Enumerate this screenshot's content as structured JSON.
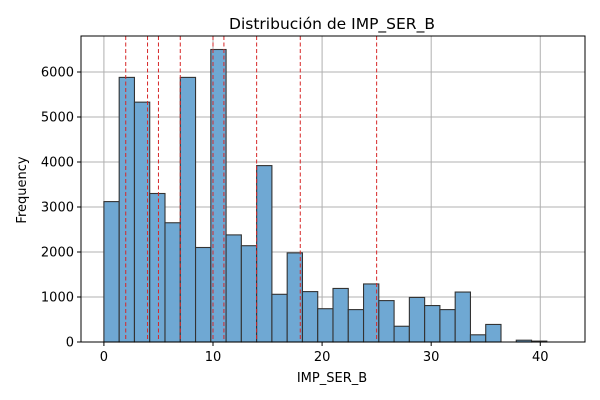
{
  "chart_data": {
    "type": "bar",
    "title": "Distribución de IMP_SER_B",
    "xlabel": "IMP_SER_B",
    "ylabel": "Frequency",
    "xlim": [
      -2.1,
      44.1
    ],
    "ylim": [
      0,
      6800
    ],
    "xticks": [
      0,
      10,
      20,
      30,
      40
    ],
    "yticks": [
      0,
      1000,
      2000,
      3000,
      4000,
      5000,
      6000
    ],
    "grid": true,
    "bin_width": 1.4,
    "bins": [
      {
        "x0": 0.0,
        "value": 3120
      },
      {
        "x0": 1.4,
        "value": 5880
      },
      {
        "x0": 2.8,
        "value": 5330
      },
      {
        "x0": 4.2,
        "value": 3300
      },
      {
        "x0": 5.6,
        "value": 2650
      },
      {
        "x0": 7.0,
        "value": 5880
      },
      {
        "x0": 8.4,
        "value": 2100
      },
      {
        "x0": 9.8,
        "value": 6500
      },
      {
        "x0": 11.2,
        "value": 2380
      },
      {
        "x0": 12.6,
        "value": 2140
      },
      {
        "x0": 14.0,
        "value": 3920
      },
      {
        "x0": 15.4,
        "value": 1060
      },
      {
        "x0": 16.8,
        "value": 1980
      },
      {
        "x0": 18.2,
        "value": 1120
      },
      {
        "x0": 19.6,
        "value": 740
      },
      {
        "x0": 21.0,
        "value": 1190
      },
      {
        "x0": 22.4,
        "value": 720
      },
      {
        "x0": 23.8,
        "value": 1290
      },
      {
        "x0": 25.2,
        "value": 920
      },
      {
        "x0": 26.6,
        "value": 350
      },
      {
        "x0": 28.0,
        "value": 990
      },
      {
        "x0": 29.4,
        "value": 810
      },
      {
        "x0": 30.8,
        "value": 720
      },
      {
        "x0": 32.2,
        "value": 1110
      },
      {
        "x0": 33.6,
        "value": 160
      },
      {
        "x0": 35.0,
        "value": 390
      },
      {
        "x0": 36.4,
        "value": 0
      },
      {
        "x0": 37.8,
        "value": 40
      },
      {
        "x0": 39.2,
        "value": 20
      }
    ],
    "reference_lines": [
      2,
      4,
      5,
      7,
      10,
      11,
      14,
      18,
      25
    ],
    "colors": {
      "bar_fill": "#6fa8d3",
      "bar_edge": "#333333",
      "reference_line": "#d62728",
      "grid": "#b0b0b0"
    }
  }
}
